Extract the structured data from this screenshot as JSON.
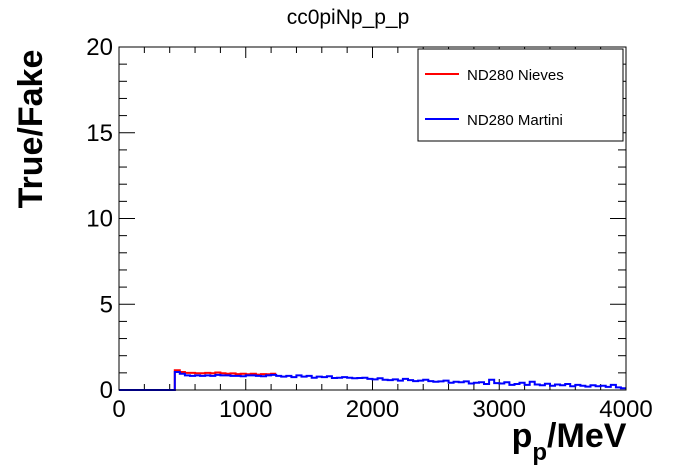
{
  "chart_data": {
    "type": "line",
    "title": "cc0piNp_p_p",
    "xlabel_main": "p",
    "xlabel_sub": "p",
    "xlabel_unit": "/MeV",
    "ylabel": "True/Fake",
    "xlim": [
      0,
      4000
    ],
    "ylim": [
      0,
      20
    ],
    "x_ticks": [
      0,
      1000,
      2000,
      3000,
      4000
    ],
    "y_ticks": [
      0,
      5,
      10,
      15,
      20
    ],
    "grid": false,
    "legend_position": "top-right",
    "bin_width": 40,
    "series": [
      {
        "name": "ND280 Nieves",
        "color": "#ff0000",
        "bins_x": [
          0,
          40,
          80,
          120,
          160,
          200,
          240,
          280,
          320,
          360,
          400,
          440,
          480,
          520,
          560,
          600,
          640,
          680,
          720,
          760,
          800,
          840,
          880,
          920,
          960,
          1000,
          1040,
          1080,
          1120,
          1160,
          1200
        ],
        "values": [
          0,
          0,
          0,
          0,
          0,
          0,
          0,
          0,
          0,
          0,
          0,
          1.15,
          1.05,
          1.0,
          1.0,
          0.98,
          0.98,
          1.0,
          0.98,
          1.02,
          0.98,
          0.95,
          0.97,
          0.93,
          0.95,
          0.92,
          0.95,
          0.9,
          0.93,
          0.92,
          0.95
        ]
      },
      {
        "name": "ND280 Martini",
        "color": "#0000ff",
        "bins_x": [
          0,
          40,
          80,
          120,
          160,
          200,
          240,
          280,
          320,
          360,
          400,
          440,
          480,
          520,
          560,
          600,
          640,
          680,
          720,
          760,
          800,
          840,
          880,
          920,
          960,
          1000,
          1040,
          1080,
          1120,
          1160,
          1200,
          1240,
          1280,
          1320,
          1360,
          1400,
          1440,
          1480,
          1520,
          1560,
          1600,
          1640,
          1680,
          1720,
          1760,
          1800,
          1840,
          1880,
          1920,
          1960,
          2000,
          2040,
          2080,
          2120,
          2160,
          2200,
          2240,
          2280,
          2320,
          2360,
          2400,
          2440,
          2480,
          2520,
          2560,
          2600,
          2640,
          2680,
          2720,
          2760,
          2800,
          2840,
          2880,
          2920,
          2960,
          3000,
          3040,
          3080,
          3120,
          3160,
          3200,
          3240,
          3280,
          3320,
          3360,
          3400,
          3440,
          3480,
          3520,
          3560,
          3600,
          3640,
          3680,
          3720,
          3760,
          3800,
          3840,
          3880,
          3920,
          3960
        ],
        "values": [
          0,
          0,
          0,
          0,
          0,
          0,
          0,
          0,
          0,
          0,
          0,
          1.05,
          0.95,
          0.85,
          0.82,
          0.85,
          0.82,
          0.85,
          0.82,
          0.88,
          0.85,
          0.85,
          0.82,
          0.82,
          0.8,
          0.85,
          0.85,
          0.82,
          0.8,
          0.85,
          0.88,
          0.82,
          0.78,
          0.82,
          0.75,
          0.85,
          0.78,
          0.82,
          0.72,
          0.78,
          0.75,
          0.8,
          0.7,
          0.72,
          0.75,
          0.72,
          0.68,
          0.7,
          0.72,
          0.65,
          0.62,
          0.68,
          0.6,
          0.58,
          0.62,
          0.55,
          0.65,
          0.58,
          0.52,
          0.55,
          0.6,
          0.52,
          0.48,
          0.5,
          0.55,
          0.42,
          0.48,
          0.45,
          0.5,
          0.38,
          0.42,
          0.45,
          0.35,
          0.6,
          0.4,
          0.38,
          0.45,
          0.3,
          0.35,
          0.42,
          0.3,
          0.48,
          0.32,
          0.28,
          0.36,
          0.25,
          0.32,
          0.28,
          0.35,
          0.22,
          0.3,
          0.25,
          0.2,
          0.28,
          0.22,
          0.25,
          0.18,
          0.3,
          0.15,
          0.1
        ]
      }
    ]
  }
}
